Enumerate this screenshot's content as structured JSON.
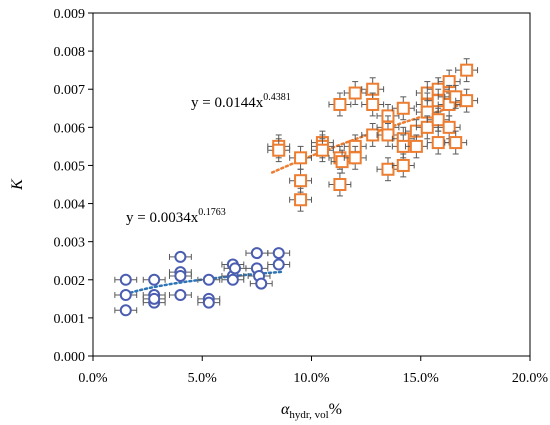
{
  "chart_data": {
    "type": "scatter",
    "xlabel": {
      "symbol": "α",
      "subscript": "hydr, vol",
      "suffix": "%"
    },
    "ylabel": "K",
    "xlim": [
      0,
      0.2
    ],
    "ylim": [
      0,
      0.009
    ],
    "x_ticks": [
      "0.0%",
      "5.0%",
      "10.0%",
      "15.0%",
      "20.0%"
    ],
    "x_tick_values": [
      0,
      0.05,
      0.1,
      0.15,
      0.2
    ],
    "y_ticks": [
      "0.000",
      "0.001",
      "0.002",
      "0.003",
      "0.004",
      "0.005",
      "0.006",
      "0.007",
      "0.008",
      "0.009"
    ],
    "y_tick_values": [
      0,
      0.001,
      0.002,
      0.003,
      0.004,
      0.005,
      0.006,
      0.007,
      0.008,
      0.009
    ],
    "grid": false,
    "series": [
      {
        "marker": "circle-plus",
        "color": "#4A5DB0",
        "trendline": {
          "type": "power",
          "a": 0.0034,
          "b": 0.1763,
          "x_range": [
            0.015,
            0.086
          ],
          "color": "#2E75B6",
          "style": "dotted"
        },
        "equation": {
          "base": "y = 0.0034x",
          "exponent": "0.1763"
        },
        "x_error": 0.005,
        "y_error": 0.0001,
        "points": [
          [
            0.015,
            0.002
          ],
          [
            0.015,
            0.0016
          ],
          [
            0.015,
            0.0012
          ],
          [
            0.028,
            0.002
          ],
          [
            0.028,
            0.0016
          ],
          [
            0.028,
            0.0014
          ],
          [
            0.028,
            0.0015
          ],
          [
            0.04,
            0.0026
          ],
          [
            0.04,
            0.0022
          ],
          [
            0.04,
            0.0021
          ],
          [
            0.04,
            0.0016
          ],
          [
            0.053,
            0.002
          ],
          [
            0.053,
            0.0015
          ],
          [
            0.053,
            0.0014
          ],
          [
            0.064,
            0.0024
          ],
          [
            0.064,
            0.0021
          ],
          [
            0.064,
            0.002
          ],
          [
            0.065,
            0.0023
          ],
          [
            0.075,
            0.0027
          ],
          [
            0.075,
            0.0023
          ],
          [
            0.076,
            0.0021
          ],
          [
            0.077,
            0.0019
          ],
          [
            0.085,
            0.0027
          ],
          [
            0.085,
            0.0024
          ]
        ]
      },
      {
        "marker": "square-plus",
        "color": "#ED7D31",
        "trendline": {
          "type": "power",
          "a": 0.0144,
          "b": 0.4381,
          "x_range": [
            0.082,
            0.171
          ],
          "color": "#ED7D31",
          "style": "dotted"
        },
        "equation": {
          "base": "y = 0.0144x",
          "exponent": "0.4381"
        },
        "x_error": 0.005,
        "y_error": 0.0003,
        "points": [
          [
            0.085,
            0.0055
          ],
          [
            0.085,
            0.0054
          ],
          [
            0.095,
            0.0052
          ],
          [
            0.095,
            0.0046
          ],
          [
            0.095,
            0.0041
          ],
          [
            0.105,
            0.0056
          ],
          [
            0.105,
            0.0055
          ],
          [
            0.105,
            0.0054
          ],
          [
            0.113,
            0.0066
          ],
          [
            0.113,
            0.0052
          ],
          [
            0.113,
            0.0045
          ],
          [
            0.114,
            0.0051
          ],
          [
            0.12,
            0.0069
          ],
          [
            0.12,
            0.0055
          ],
          [
            0.12,
            0.0052
          ],
          [
            0.128,
            0.007
          ],
          [
            0.128,
            0.0066
          ],
          [
            0.128,
            0.0058
          ],
          [
            0.135,
            0.0063
          ],
          [
            0.135,
            0.006
          ],
          [
            0.135,
            0.0058
          ],
          [
            0.135,
            0.0049
          ],
          [
            0.142,
            0.0065
          ],
          [
            0.142,
            0.0057
          ],
          [
            0.142,
            0.0055
          ],
          [
            0.142,
            0.005
          ],
          [
            0.148,
            0.0059
          ],
          [
            0.148,
            0.0055
          ],
          [
            0.153,
            0.0069
          ],
          [
            0.153,
            0.0066
          ],
          [
            0.153,
            0.0064
          ],
          [
            0.153,
            0.006
          ],
          [
            0.158,
            0.007
          ],
          [
            0.158,
            0.0067
          ],
          [
            0.158,
            0.0062
          ],
          [
            0.158,
            0.0056
          ],
          [
            0.163,
            0.0072
          ],
          [
            0.163,
            0.0068
          ],
          [
            0.163,
            0.0066
          ],
          [
            0.163,
            0.006
          ],
          [
            0.166,
            0.0068
          ],
          [
            0.166,
            0.0056
          ],
          [
            0.171,
            0.0075
          ],
          [
            0.171,
            0.0067
          ]
        ]
      }
    ]
  }
}
